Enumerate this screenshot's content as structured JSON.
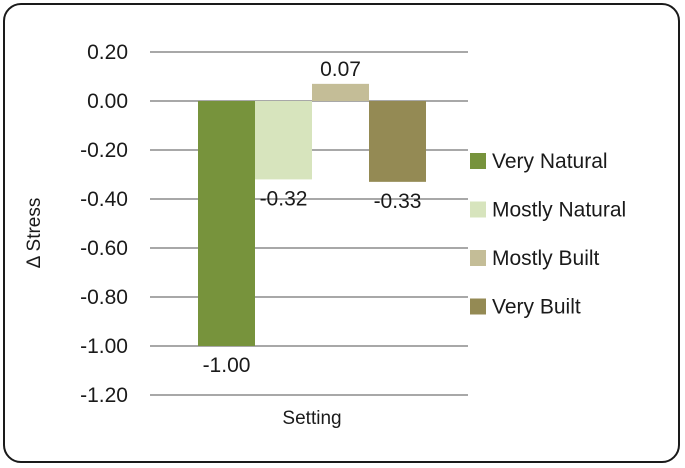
{
  "chart_data": {
    "type": "bar",
    "title": "",
    "xlabel": "Setting",
    "ylabel": "Δ Stress",
    "ylim": [
      -1.2,
      0.2
    ],
    "ytick_step": 0.2,
    "yticks": [
      "0.20",
      "0.00",
      "-0.20",
      "-0.40",
      "-0.60",
      "-0.80",
      "-1.00",
      "-1.20"
    ],
    "grid": true,
    "legend_position": "right",
    "series": [
      {
        "name": "Very Natural",
        "value": -1.0,
        "label": "-1.00",
        "color": "#77933c"
      },
      {
        "name": "Mostly Natural",
        "value": -0.32,
        "label": "-0.32",
        "color": "#d7e4bd"
      },
      {
        "name": "Mostly Built",
        "value": 0.07,
        "label": "0.07",
        "color": "#c4bd97"
      },
      {
        "name": "Very Built",
        "value": -0.33,
        "label": "-0.33",
        "color": "#948a54"
      }
    ]
  }
}
